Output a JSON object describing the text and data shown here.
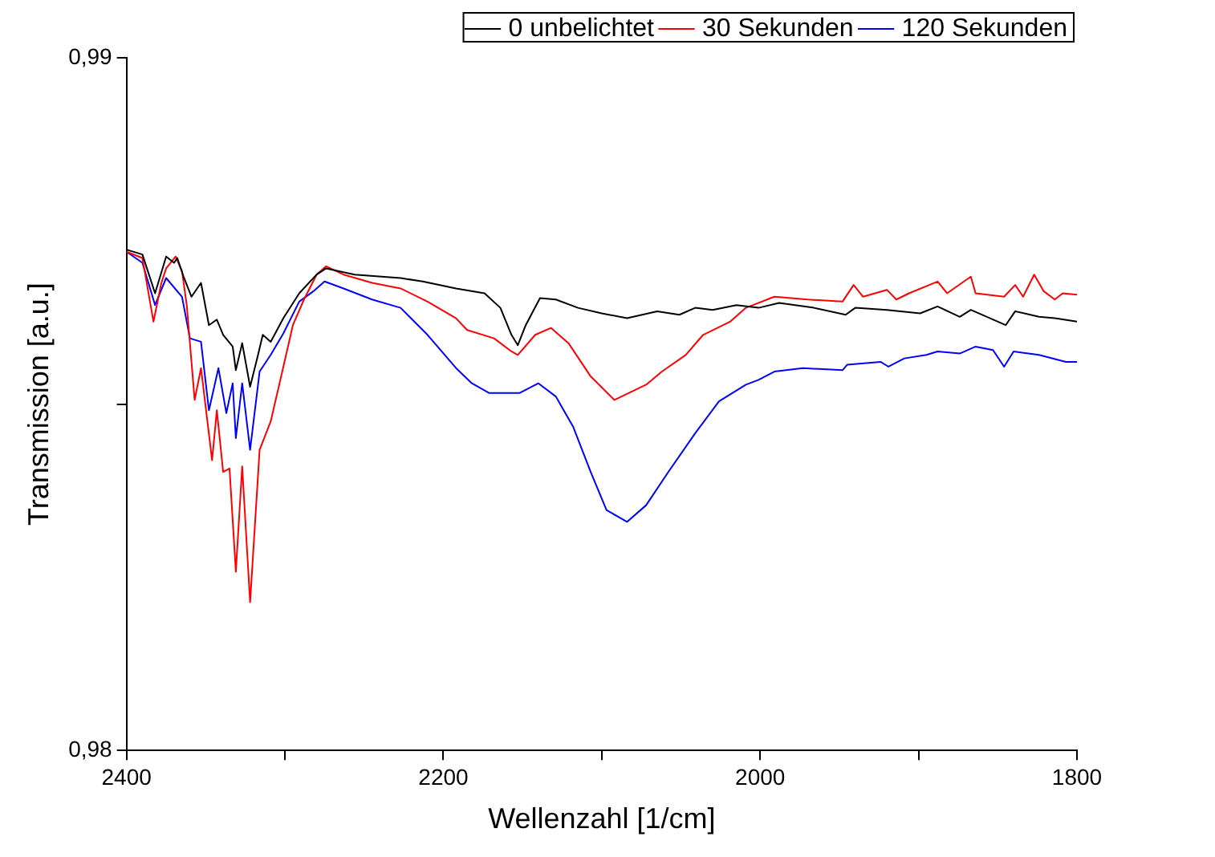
{
  "chart_data": {
    "type": "line",
    "xlabel": "Wellenzahl [1/cm]",
    "ylabel": "Transmission [a.u.]",
    "xlim": [
      2400,
      1800
    ],
    "xticks": [
      2400,
      {
        "value": 2300,
        "label": null
      },
      2200,
      {
        "value": 2100,
        "label": null
      },
      2000,
      {
        "value": 1900,
        "label": null
      },
      1800
    ],
    "ylim": [
      0.98,
      0.99
    ],
    "yticks": [
      {
        "value": 0.98,
        "label": "0,98"
      },
      {
        "value": 0.985,
        "label": null
      },
      {
        "value": 0.99,
        "label": "0,99"
      }
    ],
    "legend": "top right",
    "marker": "none",
    "line_style": "solid",
    "series": [
      {
        "name": "0 unbelichtet",
        "color": "#000000",
        "x": [
          2400,
          2390,
          2382,
          2375,
          2370,
          2368,
          2364,
          2359,
          2353,
          2348,
          2343,
          2339,
          2333,
          2331,
          2327,
          2322,
          2317,
          2314,
          2309,
          2301,
          2291,
          2280,
          2274,
          2256,
          2227,
          2213,
          2192,
          2174,
          2164,
          2157,
          2153,
          2148,
          2139,
          2129,
          2115,
          2100,
          2084,
          2065,
          2051,
          2041,
          2030,
          2015,
          2001,
          1988,
          1966,
          1946,
          1940,
          1920,
          1899,
          1888,
          1874,
          1867,
          1845,
          1839,
          1824,
          1814,
          1800
        ],
        "values": [
          0.98723,
          0.98716,
          0.9866,
          0.98713,
          0.98704,
          0.98711,
          0.98684,
          0.98655,
          0.98675,
          0.98614,
          0.98622,
          0.986,
          0.98583,
          0.98549,
          0.98588,
          0.98525,
          0.98571,
          0.986,
          0.9859,
          0.98624,
          0.9866,
          0.98687,
          0.98696,
          0.98687,
          0.98682,
          0.98677,
          0.98667,
          0.9866,
          0.98639,
          0.986,
          0.98585,
          0.98614,
          0.98653,
          0.98651,
          0.98639,
          0.98631,
          0.98624,
          0.98634,
          0.98629,
          0.98639,
          0.98636,
          0.98643,
          0.98639,
          0.98646,
          0.98639,
          0.98629,
          0.98639,
          0.98636,
          0.98631,
          0.98641,
          0.98626,
          0.98636,
          0.98614,
          0.98634,
          0.98626,
          0.98624,
          0.98619
        ]
      },
      {
        "name": "30 Sekunden",
        "color": "#ff0000",
        "x": [
          2400,
          2390,
          2383,
          2378,
          2375,
          2369,
          2365,
          2362,
          2357,
          2353,
          2346,
          2343,
          2339,
          2335,
          2331,
          2327,
          2322,
          2316,
          2309,
          2301,
          2295,
          2288,
          2280,
          2274,
          2263,
          2245,
          2227,
          2210,
          2192,
          2185,
          2168,
          2157,
          2153,
          2142,
          2132,
          2121,
          2107,
          2092,
          2072,
          2062,
          2047,
          2036,
          2019,
          2009,
          1991,
          1970,
          1948,
          1941,
          1935,
          1920,
          1914,
          1906,
          1888,
          1882,
          1867,
          1864,
          1846,
          1839,
          1834,
          1827,
          1821,
          1814,
          1809,
          1800
        ],
        "values": [
          0.9872,
          0.98711,
          0.98619,
          0.98675,
          0.98696,
          0.98713,
          0.98692,
          0.98643,
          0.98506,
          0.98552,
          0.98419,
          0.98491,
          0.98402,
          0.98407,
          0.98258,
          0.9841,
          0.98214,
          0.98434,
          0.98475,
          0.98554,
          0.98614,
          0.98651,
          0.98687,
          0.98699,
          0.98687,
          0.98675,
          0.98667,
          0.98648,
          0.98624,
          0.98607,
          0.98595,
          0.98576,
          0.98571,
          0.986,
          0.9861,
          0.98588,
          0.9854,
          0.98506,
          0.98528,
          0.98547,
          0.98571,
          0.986,
          0.98619,
          0.98639,
          0.98655,
          0.98651,
          0.98648,
          0.98672,
          0.98655,
          0.98665,
          0.98651,
          0.9866,
          0.98677,
          0.9866,
          0.98684,
          0.9866,
          0.98655,
          0.98672,
          0.98655,
          0.98687,
          0.98663,
          0.98651,
          0.9866,
          0.98658
        ]
      },
      {
        "name": "120 Sekunden",
        "color": "#0000ff",
        "x": [
          2400,
          2390,
          2382,
          2375,
          2365,
          2360,
          2353,
          2348,
          2342,
          2337,
          2333,
          2331,
          2327,
          2322,
          2316,
          2309,
          2301,
          2291,
          2282,
          2275,
          2263,
          2245,
          2227,
          2210,
          2192,
          2182,
          2171,
          2152,
          2140,
          2129,
          2118,
          2107,
          2097,
          2084,
          2072,
          2058,
          2041,
          2026,
          2009,
          2001,
          1991,
          1973,
          1948,
          1945,
          1924,
          1919,
          1909,
          1895,
          1888,
          1874,
          1864,
          1853,
          1846,
          1840,
          1824,
          1807,
          1800
        ],
        "values": [
          0.9872,
          0.98704,
          0.98643,
          0.98682,
          0.98655,
          0.98595,
          0.9859,
          0.98491,
          0.98552,
          0.98487,
          0.9853,
          0.98451,
          0.9853,
          0.98434,
          0.98547,
          0.98571,
          0.98602,
          0.98648,
          0.98663,
          0.98677,
          0.98667,
          0.98651,
          0.98639,
          0.986,
          0.98552,
          0.9853,
          0.98516,
          0.98516,
          0.9853,
          0.98511,
          0.98467,
          0.98402,
          0.98347,
          0.9833,
          0.98354,
          0.98402,
          0.98458,
          0.98504,
          0.98528,
          0.98535,
          0.98547,
          0.98552,
          0.98549,
          0.98557,
          0.98561,
          0.98554,
          0.98566,
          0.98571,
          0.98576,
          0.98573,
          0.98583,
          0.98578,
          0.98554,
          0.98576,
          0.98571,
          0.98561,
          0.98561
        ]
      }
    ]
  }
}
